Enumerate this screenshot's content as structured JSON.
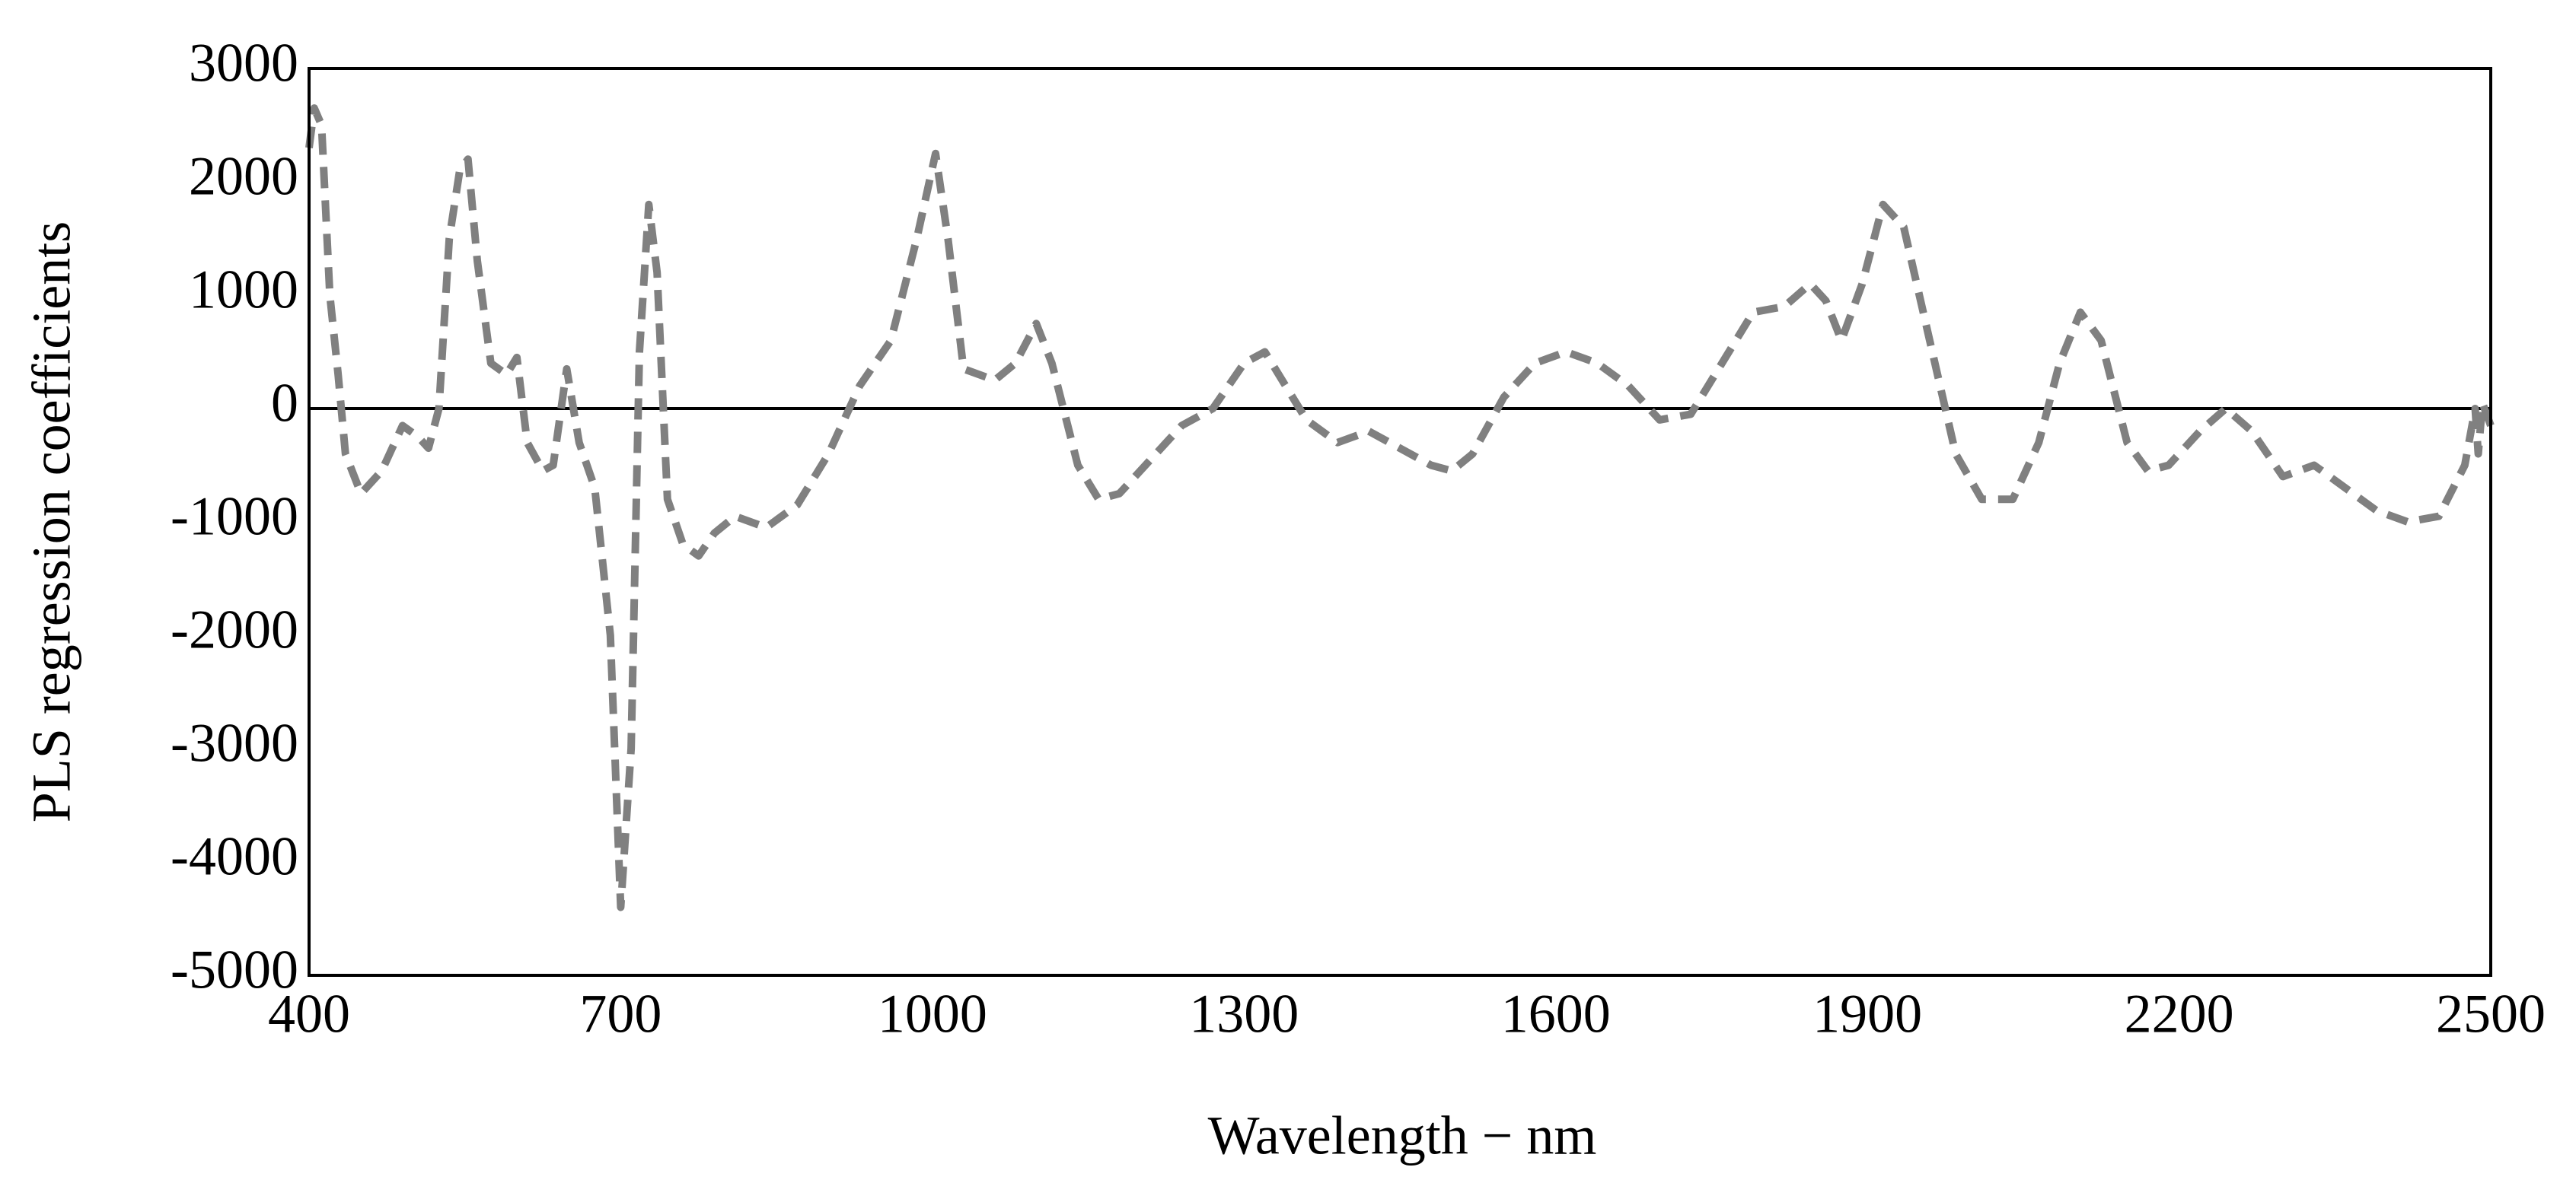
{
  "chart_data": {
    "type": "line",
    "xlabel": "Wavelength − nm",
    "ylabel": "PLS regression coefficients",
    "x": [
      400,
      405,
      412,
      420,
      428,
      435,
      450,
      470,
      490,
      505,
      515,
      525,
      535,
      545,
      553,
      562,
      575,
      590,
      600,
      610,
      625,
      635,
      648,
      660,
      675,
      690,
      700,
      710,
      718,
      727,
      735,
      745,
      760,
      775,
      790,
      810,
      840,
      870,
      900,
      930,
      960,
      985,
      1003,
      1015,
      1030,
      1060,
      1080,
      1100,
      1115,
      1140,
      1160,
      1180,
      1210,
      1240,
      1270,
      1300,
      1320,
      1340,
      1360,
      1390,
      1420,
      1450,
      1480,
      1500,
      1520,
      1550,
      1580,
      1610,
      1640,
      1670,
      1700,
      1730,
      1760,
      1790,
      1820,
      1845,
      1860,
      1875,
      1895,
      1915,
      1935,
      1960,
      1985,
      2010,
      2040,
      2065,
      2085,
      2105,
      2125,
      2150,
      2170,
      2190,
      2220,
      2245,
      2270,
      2300,
      2330,
      2360,
      2390,
      2420,
      2450,
      2475,
      2485,
      2488,
      2492,
      2500
    ],
    "values": [
      2300,
      2650,
      2500,
      1000,
      300,
      -400,
      -750,
      -550,
      -150,
      -250,
      -350,
      0,
      1500,
      2100,
      2200,
      1300,
      400,
      300,
      450,
      -300,
      -550,
      -500,
      350,
      -300,
      -700,
      -2000,
      -4400,
      -3000,
      500,
      1800,
      1200,
      -800,
      -1200,
      -1300,
      -1100,
      -950,
      -1050,
      -850,
      -400,
      200,
      600,
      1500,
      2250,
      1500,
      350,
      250,
      400,
      750,
      400,
      -500,
      -800,
      -750,
      -450,
      -150,
      0,
      400,
      500,
      200,
      -100,
      -300,
      -200,
      -350,
      -500,
      -550,
      -400,
      100,
      400,
      500,
      400,
      200,
      -100,
      -50,
      400,
      850,
      900,
      1100,
      950,
      600,
      1100,
      1800,
      1600,
      600,
      -400,
      -800,
      -800,
      -300,
      400,
      850,
      600,
      -300,
      -550,
      -500,
      -200,
      0,
      -200,
      -600,
      -500,
      -700,
      -900,
      -1000,
      -950,
      -500,
      0,
      -400,
      50,
      -150
    ],
    "color": "#808080",
    "line_style": "dashed",
    "xlim": [
      400,
      2500
    ],
    "xticks": [
      400,
      700,
      1000,
      1300,
      1600,
      1900,
      2200,
      2500
    ],
    "ylim": [
      -5000,
      3000
    ],
    "yticks": [
      -5000,
      -4000,
      -3000,
      -2000,
      -1000,
      0,
      1000,
      2000,
      3000
    ],
    "zero_line": true
  }
}
